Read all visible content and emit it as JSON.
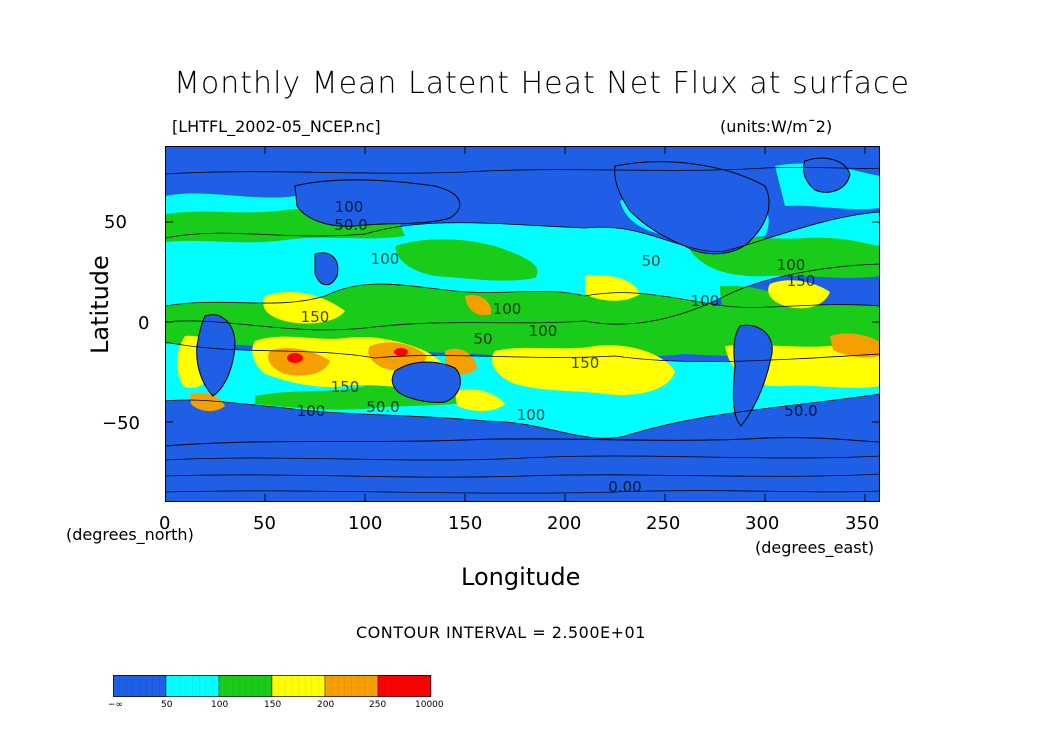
{
  "title": "Monthly Mean Latent Heat Net Flux at surface",
  "file_label": "[LHTFL_2002-05_NCEP.nc]",
  "units_label": "(units:W/m¯2)",
  "y_axis": {
    "title": "Latitude",
    "ticks": [
      "50",
      "0",
      "−50"
    ],
    "tick_values": [
      50,
      0,
      -50
    ],
    "range": [
      -90,
      88
    ]
  },
  "x_axis": {
    "title": "Longitude",
    "ticks": [
      "0",
      "50",
      "100",
      "150",
      "200",
      "250",
      "300",
      "350"
    ],
    "tick_values": [
      0,
      50,
      100,
      150,
      200,
      250,
      300,
      350
    ],
    "range": [
      0,
      357.5
    ],
    "left_note": "(degrees_north)",
    "right_note": "(degrees_east)"
  },
  "contour_interval": "CONTOUR INTERVAL = 2.500E+01",
  "contour_labels": [
    {
      "text": "100",
      "lon": 92,
      "lat": 55
    },
    {
      "text": "50.0",
      "lon": 93,
      "lat": 46
    },
    {
      "text": "100",
      "lon": 110,
      "lat": 29
    },
    {
      "text": "150",
      "lon": 75,
      "lat": 0
    },
    {
      "text": "100",
      "lon": 171,
      "lat": 4
    },
    {
      "text": "100",
      "lon": 189,
      "lat": -7
    },
    {
      "text": "50",
      "lon": 159,
      "lat": -11
    },
    {
      "text": "150",
      "lon": 210,
      "lat": -23
    },
    {
      "text": "150",
      "lon": 90,
      "lat": -35
    },
    {
      "text": "100",
      "lon": 73,
      "lat": -47
    },
    {
      "text": "50.0",
      "lon": 109,
      "lat": -45
    },
    {
      "text": "100",
      "lon": 183,
      "lat": -49
    },
    {
      "text": "100",
      "lon": 270,
      "lat": 8
    },
    {
      "text": "50",
      "lon": 243,
      "lat": 28
    },
    {
      "text": "100",
      "lon": 313,
      "lat": 26
    },
    {
      "text": "150",
      "lon": 318,
      "lat": 18
    },
    {
      "text": "50.0",
      "lon": 318,
      "lat": -47
    },
    {
      "text": "0.00",
      "lon": 230,
      "lat": -85
    }
  ],
  "colorbar": {
    "labels": [
      "−∞",
      "50",
      "100",
      "150",
      "200",
      "250",
      "10000"
    ],
    "bins": [
      {
        "color": "#1e5fe6",
        "range": "−∞ to 50"
      },
      {
        "color": "#00ffff",
        "range": "50 to 100"
      },
      {
        "color": "#19cc19",
        "range": "100 to 150"
      },
      {
        "color": "#ffff00",
        "range": "150 to 200"
      },
      {
        "color": "#f5a000",
        "range": "200 to 250"
      },
      {
        "color": "#ff0000",
        "range": "250 to 10000"
      }
    ]
  }
}
